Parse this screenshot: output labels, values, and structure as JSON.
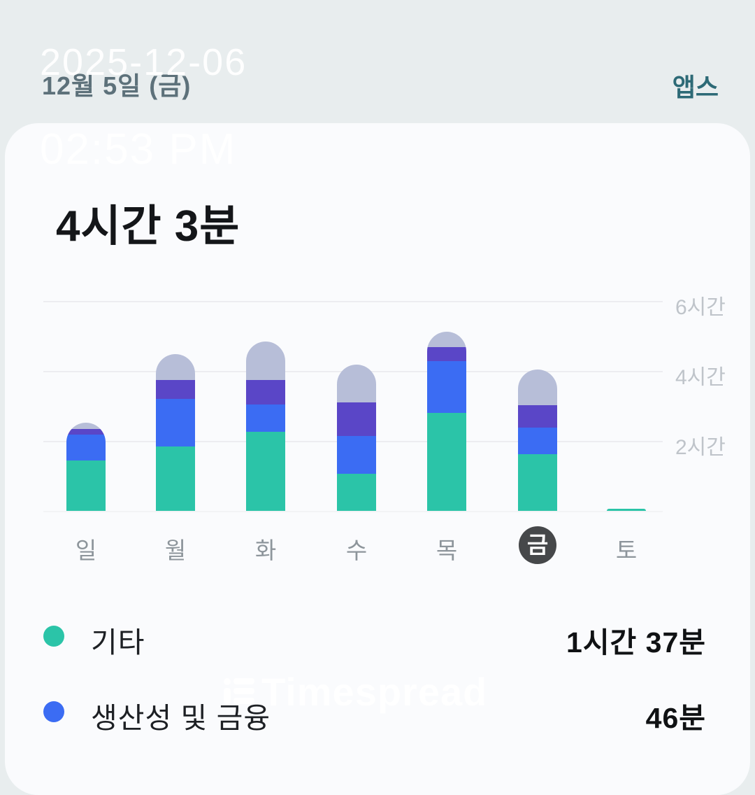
{
  "watermarks": {
    "date": "2025-12-06",
    "time": "02:53 PM",
    "brand": "Timespread"
  },
  "header": {
    "date_label": "12월 5일 (금)",
    "apps_link": "앱스"
  },
  "summary": {
    "total_time": "4시간 3분"
  },
  "legend": {
    "items": [
      {
        "label": "기타",
        "value": "1시간 37분",
        "color": "#2bc4a8"
      },
      {
        "label": "생산성 및 금융",
        "value": "46분",
        "color": "#3b6cf3"
      }
    ]
  },
  "colors": {
    "background": "#e8edee",
    "card": "#fafbfd",
    "accent_teal": "#2bc4a8",
    "accent_blue": "#3b6cf3",
    "accent_purple": "#5a46c7",
    "accent_gray": "#b7bed8",
    "selected_day_badge": "#46484a",
    "apps_link": "#2d6a76"
  },
  "chart_data": {
    "type": "bar",
    "stacked": true,
    "title": "4시간 3분",
    "categories": [
      "일",
      "월",
      "화",
      "수",
      "목",
      "금",
      "토"
    ],
    "selected_category": "금",
    "unit": "minutes",
    "series": [
      {
        "name": "기타",
        "color": "#2bc4a8",
        "minutes": [
          87,
          110,
          136,
          64,
          168,
          97,
          4
        ]
      },
      {
        "name": "생산성 및 금융",
        "color": "#3b6cf3",
        "minutes": [
          44,
          82,
          47,
          64,
          89,
          46,
          0
        ]
      },
      {
        "name": "unlabeled-purple",
        "color": "#5a46c7",
        "minutes": [
          10,
          32,
          42,
          58,
          24,
          38,
          0
        ]
      },
      {
        "name": "unlabeled-gray",
        "color": "#b7bed8",
        "minutes": [
          10,
          45,
          66,
          65,
          26,
          62,
          0
        ]
      }
    ],
    "y_axis": {
      "ticks": [
        "6시간",
        "4시간",
        "2시간"
      ],
      "minutes_per_tick_step": 120,
      "range_minutes": [
        0,
        396
      ],
      "grid": true,
      "labels_position": "right"
    }
  }
}
